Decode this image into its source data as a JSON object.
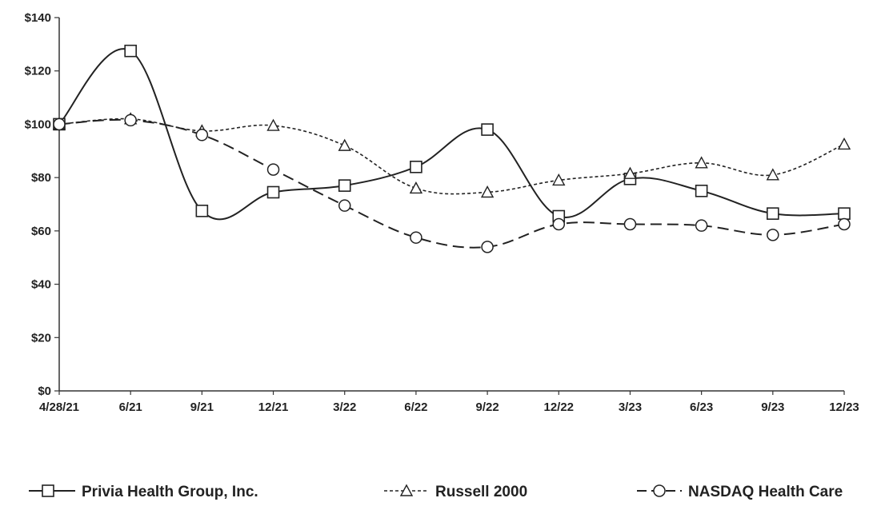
{
  "chart_data": {
    "type": "line",
    "title": "",
    "xlabel": "",
    "ylabel": "",
    "categories": [
      "4/28/21",
      "6/21",
      "9/21",
      "12/21",
      "3/22",
      "6/22",
      "9/22",
      "12/22",
      "3/23",
      "6/23",
      "9/23",
      "12/23"
    ],
    "y_ticks": [
      "$0",
      "$20",
      "$40",
      "$60",
      "$80",
      "$100",
      "$120",
      "$140"
    ],
    "ylim": [
      0,
      140
    ],
    "grid": false,
    "legend_position": "bottom",
    "series": [
      {
        "name": "Privia Health Group, Inc.",
        "marker": "square",
        "dash": "solid",
        "values": [
          100,
          127.5,
          67.5,
          74.5,
          77,
          84,
          98,
          65.5,
          79.5,
          75,
          66.5,
          66.5
        ]
      },
      {
        "name": "Russell 2000",
        "marker": "triangle",
        "dash": "dotted",
        "values": [
          100,
          102,
          97.5,
          99.5,
          92,
          76,
          74.5,
          79,
          81.5,
          85.5,
          81,
          92.5
        ]
      },
      {
        "name": "NASDAQ Health Care",
        "marker": "circle",
        "dash": "dashed",
        "values": [
          100,
          101.5,
          96,
          83,
          69.5,
          57.5,
          54,
          62.5,
          62.5,
          62,
          58.5,
          62.5
        ]
      }
    ],
    "colors": {
      "line": "#222222",
      "axis": "#333333",
      "background": "#ffffff"
    }
  }
}
